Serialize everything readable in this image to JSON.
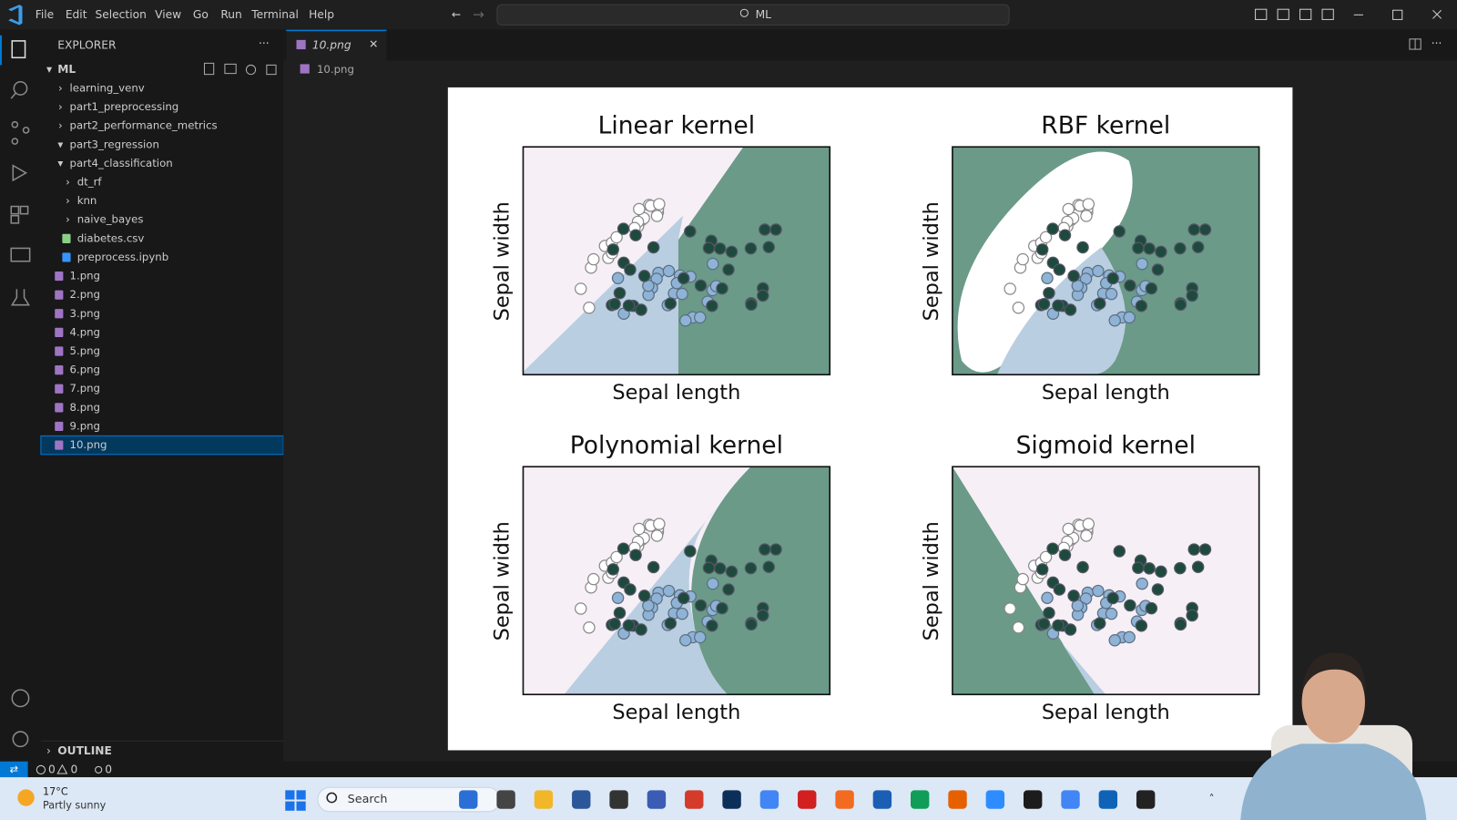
{
  "menu": [
    "File",
    "Edit",
    "Selection",
    "View",
    "Go",
    "Run",
    "Terminal",
    "Help"
  ],
  "search": "ML",
  "explorer": {
    "title": "EXPLORER",
    "root": "ML",
    "items": [
      {
        "label": "learning_venv"
      },
      {
        "label": "part1_preprocessing"
      },
      {
        "label": "part2_performance_metrics"
      },
      {
        "label": "part3_regression",
        "children": []
      },
      {
        "label": "part4_classification",
        "children": [
          {
            "label": "dt_rf"
          },
          {
            "label": "knn"
          },
          {
            "label": "naive_bayes"
          },
          {
            "label": "diabetes.csv"
          },
          {
            "label": "preprocess.ipynb"
          }
        ]
      },
      {
        "label": "1.png"
      },
      {
        "label": "2.png"
      },
      {
        "label": "3.png"
      },
      {
        "label": "4.png"
      },
      {
        "label": "5.png"
      },
      {
        "label": "6.png"
      },
      {
        "label": "7.png"
      },
      {
        "label": "8.png"
      },
      {
        "label": "9.png"
      },
      {
        "label": "10.png"
      }
    ],
    "outline": "OUTLINE"
  },
  "tab": "10.png",
  "breadcrumb": "10.png",
  "figure": {
    "panels": [
      {
        "title": "Linear kernel",
        "xlabel": "Sepal length",
        "ylabel": "Sepal width"
      },
      {
        "title": "RBF kernel",
        "xlabel": "Sepal length",
        "ylabel": "Sepal width"
      },
      {
        "title": "Polynomial kernel",
        "xlabel": "Sepal length",
        "ylabel": "Sepal width"
      },
      {
        "title": "Sigmoid kernel",
        "xlabel": "Sepal length",
        "ylabel": "Sepal width"
      }
    ]
  },
  "status": {
    "errors": 0,
    "warnings": 0,
    "ports": 0
  },
  "taskbar": {
    "temperature": "17°C",
    "weather": "Partly sunny",
    "search": "Search"
  }
}
